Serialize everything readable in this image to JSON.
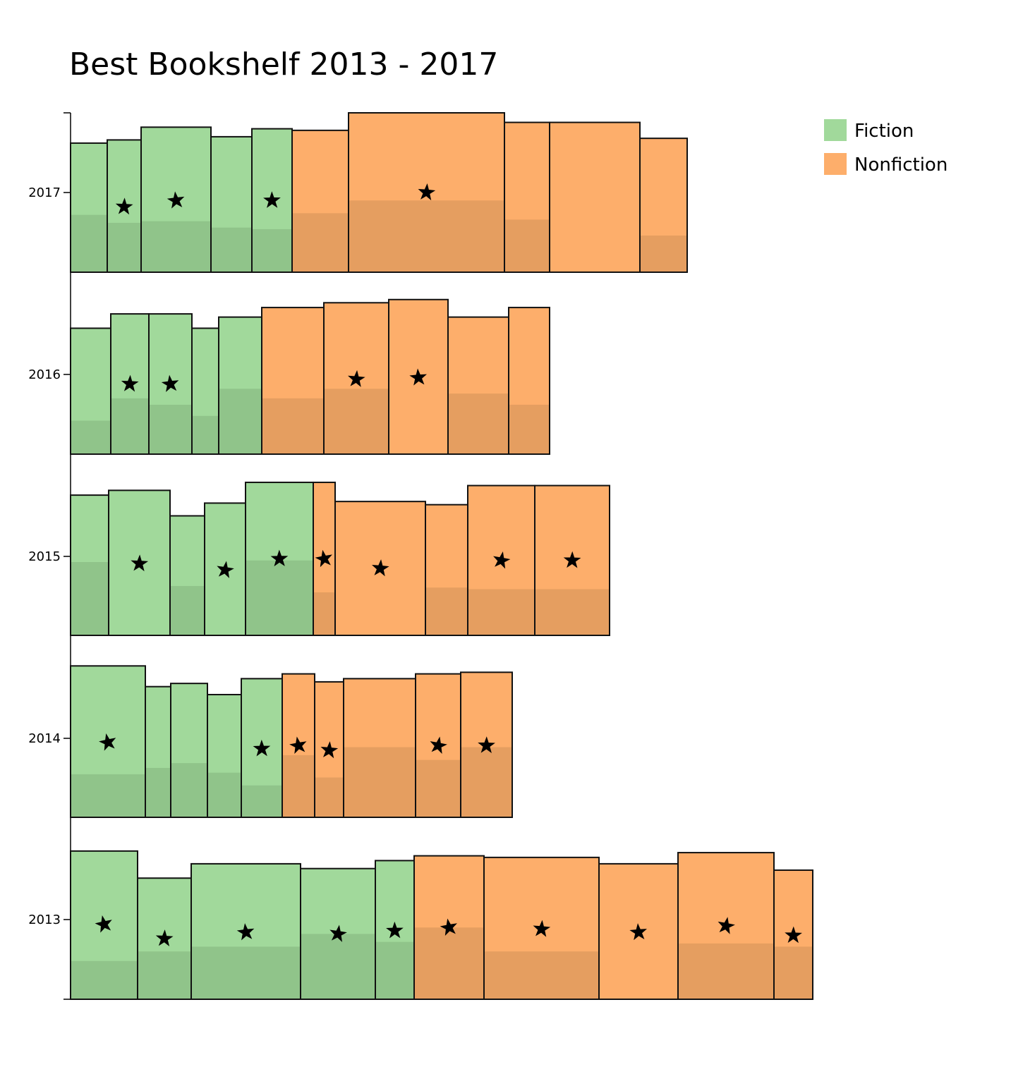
{
  "chart_data": {
    "type": "bar",
    "title": "Best Bookshelf 2013 - 2017",
    "xlabel": "",
    "ylabel": "",
    "categories": [
      "2013",
      "2014",
      "2015",
      "2016",
      "2017"
    ],
    "legend": {
      "placement": "top-right",
      "entries": [
        {
          "name": "Fiction",
          "color": "#a1d99b"
        },
        {
          "name": "Nonfiction",
          "color": "#fdae6b"
        }
      ]
    },
    "colors": {
      "fiction": "#a1d99b",
      "fiction_shade": "#90c48a",
      "nonfiction": "#fdae6b",
      "nonfiction_shade": "#e59e60",
      "outline": "#111111"
    },
    "shelves": [
      {
        "year": "2013",
        "books": [
          {
            "genre": "Fiction",
            "width": 95,
            "height": 0.93,
            "shade": 0.24,
            "starred": true,
            "star": 0.47
          },
          {
            "genre": "Fiction",
            "width": 76,
            "height": 0.76,
            "shade": 0.3,
            "starred": true,
            "star": 0.38
          },
          {
            "genre": "Fiction",
            "width": 155,
            "height": 0.85,
            "shade": 0.33,
            "starred": true,
            "star": 0.42
          },
          {
            "genre": "Fiction",
            "width": 106,
            "height": 0.82,
            "shade": 0.41,
            "starred": true,
            "star": 0.41
          },
          {
            "genre": "Fiction",
            "width": 55,
            "height": 0.87,
            "shade": 0.36,
            "starred": true,
            "star": 0.43
          },
          {
            "genre": "Nonfiction",
            "width": 99,
            "height": 0.9,
            "shade": 0.45,
            "starred": true,
            "star": 0.45
          },
          {
            "genre": "Nonfiction",
            "width": 163,
            "height": 0.89,
            "shade": 0.3,
            "starred": true,
            "star": 0.44
          },
          {
            "genre": "Nonfiction",
            "width": 112,
            "height": 0.85,
            "shade": 0,
            "starred": true,
            "star": 0.42
          },
          {
            "genre": "Nonfiction",
            "width": 136,
            "height": 0.92,
            "shade": 0.35,
            "starred": true,
            "star": 0.46
          },
          {
            "genre": "Nonfiction",
            "width": 55,
            "height": 0.81,
            "shade": 0.33,
            "starred": true,
            "star": 0.4
          }
        ]
      },
      {
        "year": "2014",
        "books": [
          {
            "genre": "Fiction",
            "width": 106,
            "height": 0.95,
            "shade": 0.27,
            "starred": true,
            "star": 0.47
          },
          {
            "genre": "Fiction",
            "width": 36,
            "height": 0.82,
            "shade": 0.31,
            "starred": false,
            "star": 0
          },
          {
            "genre": "Fiction",
            "width": 52,
            "height": 0.84,
            "shade": 0.34,
            "starred": false,
            "star": 0
          },
          {
            "genre": "Fiction",
            "width": 48,
            "height": 0.77,
            "shade": 0.28,
            "starred": false,
            "star": 0
          },
          {
            "genre": "Fiction",
            "width": 58,
            "height": 0.87,
            "shade": 0.2,
            "starred": true,
            "star": 0.43
          },
          {
            "genre": "Nonfiction",
            "width": 46,
            "height": 0.9,
            "shade": 0.39,
            "starred": true,
            "star": 0.45
          },
          {
            "genre": "Nonfiction",
            "width": 41,
            "height": 0.85,
            "shade": 0.25,
            "starred": true,
            "star": 0.42
          },
          {
            "genre": "Nonfiction",
            "width": 102,
            "height": 0.87,
            "shade": 0.44,
            "starred": false,
            "star": 0
          },
          {
            "genre": "Nonfiction",
            "width": 64,
            "height": 0.9,
            "shade": 0.36,
            "starred": true,
            "star": 0.45
          },
          {
            "genre": "Nonfiction",
            "width": 73,
            "height": 0.91,
            "shade": 0.44,
            "starred": true,
            "star": 0.45
          }
        ]
      },
      {
        "year": "2015",
        "books": [
          {
            "genre": "Fiction",
            "width": 54,
            "height": 0.88,
            "shade": 0.46,
            "starred": false,
            "star": 0
          },
          {
            "genre": "Fiction",
            "width": 87,
            "height": 0.91,
            "shade": 0,
            "starred": true,
            "star": 0.45
          },
          {
            "genre": "Fiction",
            "width": 49,
            "height": 0.75,
            "shade": 0.31,
            "starred": false,
            "star": 0
          },
          {
            "genre": "Fiction",
            "width": 58,
            "height": 0.83,
            "shade": 0,
            "starred": true,
            "star": 0.41
          },
          {
            "genre": "Fiction",
            "width": 96,
            "height": 0.96,
            "shade": 0.47,
            "starred": true,
            "star": 0.48
          },
          {
            "genre": "Nonfiction",
            "width": 31,
            "height": 0.96,
            "shade": 0.27,
            "starred": true,
            "star": 0.48
          },
          {
            "genre": "Nonfiction",
            "width": 128,
            "height": 0.84,
            "shade": 0,
            "starred": true,
            "star": 0.42
          },
          {
            "genre": "Nonfiction",
            "width": 60,
            "height": 0.82,
            "shade": 0.3,
            "starred": false,
            "star": 0
          },
          {
            "genre": "Nonfiction",
            "width": 95,
            "height": 0.94,
            "shade": 0.29,
            "starred": true,
            "star": 0.47
          },
          {
            "genre": "Nonfiction",
            "width": 106,
            "height": 0.94,
            "shade": 0.29,
            "starred": true,
            "star": 0.47
          }
        ]
      },
      {
        "year": "2016",
        "books": [
          {
            "genre": "Fiction",
            "width": 57,
            "height": 0.79,
            "shade": 0.21,
            "starred": false,
            "star": 0
          },
          {
            "genre": "Fiction",
            "width": 54,
            "height": 0.88,
            "shade": 0.35,
            "starred": true,
            "star": 0.44
          },
          {
            "genre": "Fiction",
            "width": 61,
            "height": 0.88,
            "shade": 0.31,
            "starred": true,
            "star": 0.44
          },
          {
            "genre": "Fiction",
            "width": 38,
            "height": 0.79,
            "shade": 0.24,
            "starred": false,
            "star": 0
          },
          {
            "genre": "Fiction",
            "width": 61,
            "height": 0.86,
            "shade": 0.41,
            "starred": false,
            "star": 0
          },
          {
            "genre": "Nonfiction",
            "width": 88,
            "height": 0.92,
            "shade": 0.35,
            "starred": false,
            "star": 0
          },
          {
            "genre": "Nonfiction",
            "width": 92,
            "height": 0.95,
            "shade": 0.41,
            "starred": true,
            "star": 0.47
          },
          {
            "genre": "Nonfiction",
            "width": 84,
            "height": 0.97,
            "shade": 0,
            "starred": true,
            "star": 0.48
          },
          {
            "genre": "Nonfiction",
            "width": 86,
            "height": 0.86,
            "shade": 0.38,
            "starred": false,
            "star": 0
          },
          {
            "genre": "Nonfiction",
            "width": 58,
            "height": 0.92,
            "shade": 0.31,
            "starred": false,
            "star": 0
          }
        ]
      },
      {
        "year": "2017",
        "books": [
          {
            "genre": "Fiction",
            "width": 52,
            "height": 0.81,
            "shade": 0.36,
            "starred": false,
            "star": 0
          },
          {
            "genre": "Fiction",
            "width": 48,
            "height": 0.83,
            "shade": 0.31,
            "starred": true,
            "star": 0.41
          },
          {
            "genre": "Fiction",
            "width": 99,
            "height": 0.91,
            "shade": 0.32,
            "starred": true,
            "star": 0.45
          },
          {
            "genre": "Fiction",
            "width": 58,
            "height": 0.85,
            "shade": 0.28,
            "starred": false,
            "star": 0
          },
          {
            "genre": "Fiction",
            "width": 57,
            "height": 0.9,
            "shade": 0.27,
            "starred": true,
            "star": 0.45
          },
          {
            "genre": "Nonfiction",
            "width": 80,
            "height": 0.89,
            "shade": 0.37,
            "starred": false,
            "star": 0
          },
          {
            "genre": "Nonfiction",
            "width": 221,
            "height": 1.0,
            "shade": 0.45,
            "starred": true,
            "star": 0.5
          },
          {
            "genre": "Nonfiction",
            "width": 64,
            "height": 0.94,
            "shade": 0.33,
            "starred": false,
            "star": 0
          },
          {
            "genre": "Nonfiction",
            "width": 128,
            "height": 0.94,
            "shade": 0,
            "starred": false,
            "star": 0
          },
          {
            "genre": "Nonfiction",
            "width": 67,
            "height": 0.84,
            "shade": 0.23,
            "starred": false,
            "star": 0
          }
        ]
      }
    ]
  }
}
